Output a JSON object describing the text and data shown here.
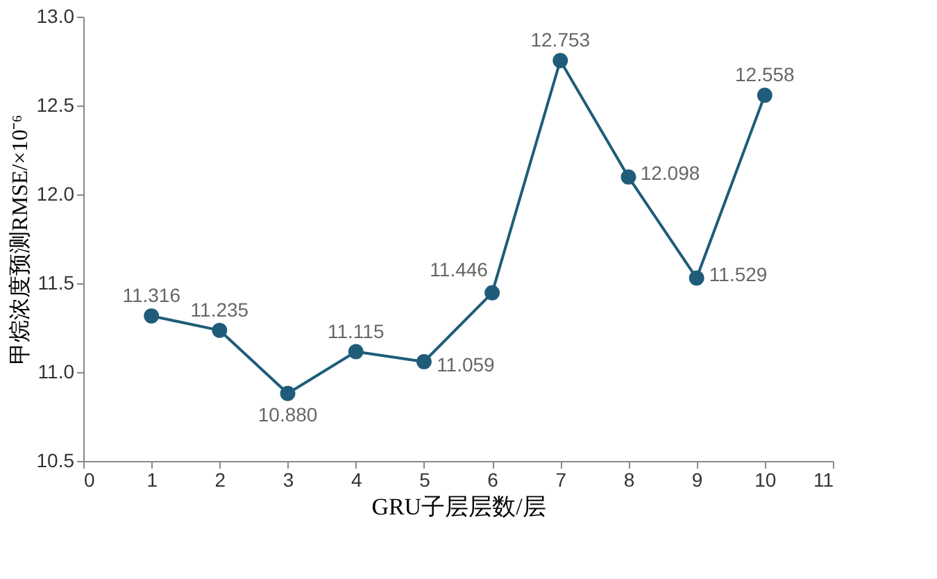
{
  "chart_data": {
    "type": "line",
    "xlabel": "GRU子层层数/层",
    "ylabel": "甲烷浓度预测RMSE/×10⁻⁶",
    "x": [
      1,
      2,
      3,
      4,
      5,
      6,
      7,
      8,
      9,
      10
    ],
    "series": [
      {
        "color": "#1f5c7a",
        "values": [
          11.316,
          11.235,
          10.88,
          11.115,
          11.059,
          11.446,
          12.753,
          12.098,
          11.529,
          12.558
        ],
        "value_labels": [
          "11.316",
          "11.235",
          "10.880",
          "11.115",
          "11.059",
          "11.446",
          "12.753",
          "12.098",
          "11.529",
          "12.558"
        ]
      }
    ],
    "xlim": [
      0,
      11
    ],
    "xticks": [
      0,
      1,
      2,
      3,
      4,
      5,
      6,
      7,
      8,
      9,
      10,
      11
    ],
    "ylim": [
      10.5,
      13.0
    ],
    "yticks": [
      {
        "value": 10.5,
        "label": "10.5"
      },
      {
        "value": 11,
        "label": "11.0"
      },
      {
        "value": 11.5,
        "label": "11.5"
      },
      {
        "value": 12,
        "label": "12.0"
      },
      {
        "value": 12.5,
        "label": "12.5"
      },
      {
        "value": 13,
        "label": "13.0"
      }
    ],
    "grid": false,
    "marker": "circle",
    "line_style": "solid"
  }
}
